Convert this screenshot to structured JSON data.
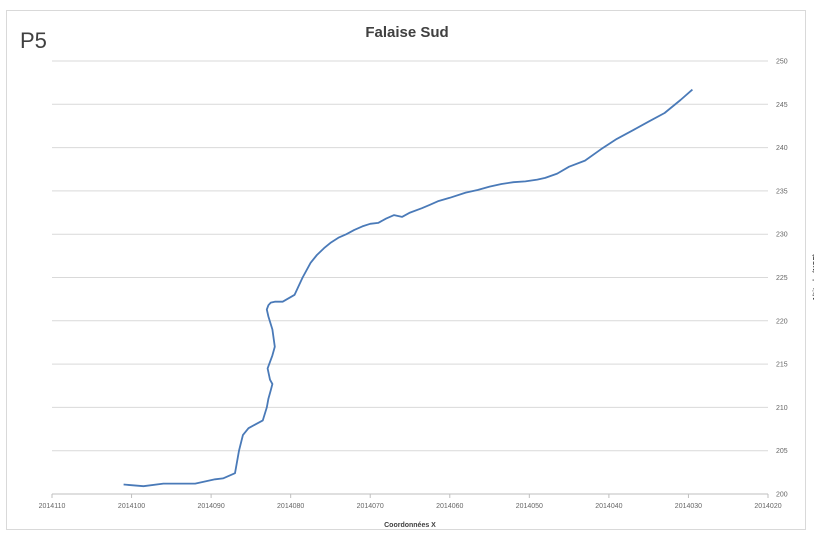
{
  "panel_label": "P5",
  "chart_data": {
    "type": "line",
    "title": "Falaise Sud",
    "xlabel": "Coordonnées X",
    "ylabel": "Altitude (NGF)",
    "x_reversed": true,
    "xlim": [
      2014020,
      2014110
    ],
    "ylim": [
      200,
      250
    ],
    "x_ticks": [
      "2014110",
      "2014100",
      "2014090",
      "2014080",
      "2014070",
      "2014060",
      "2014050",
      "2014040",
      "2014030",
      "2014020"
    ],
    "y_ticks": [
      "200",
      "205",
      "210",
      "215",
      "220",
      "225",
      "230",
      "235",
      "240",
      "245",
      "250"
    ],
    "grid": "horizontal",
    "y_axis_position": "right",
    "line_color": "#4a7ab8",
    "series": [
      {
        "x": [
          2014101.0,
          2014098.5,
          2014096.0,
          2014092.0,
          2014089.5,
          2014088.5,
          2014087.0,
          2014086.5,
          2014086.0,
          2014085.3,
          2014084.5,
          2014083.5,
          2014083.0,
          2014082.8,
          2014082.5,
          2014082.3,
          2014082.6,
          2014082.9,
          2014082.3,
          2014082.0,
          2014082.3,
          2014082.8,
          2014083.0,
          2014082.8,
          2014082.5,
          2014082.0,
          2014081.0,
          2014079.5,
          2014078.5,
          2014077.5,
          2014076.7,
          2014075.8,
          2014075.0,
          2014074.0,
          2014073.0,
          2014072.0,
          2014071.0,
          2014070.0,
          2014069.0,
          2014068.0,
          2014067.0,
          2014066.0,
          2014065.0,
          2014063.5,
          2014062.5,
          2014061.5,
          2014060.0,
          2014058.0,
          2014056.5,
          2014055.0,
          2014053.5,
          2014052.0,
          2014050.5,
          2014049.0,
          2014048.0,
          2014046.5,
          2014045.0,
          2014043.0,
          2014041.0,
          2014039.0,
          2014037.0,
          2014035.0,
          2014033.0,
          2014031.0,
          2014029.5
        ],
        "y": [
          201.1,
          200.9,
          201.2,
          201.2,
          201.7,
          201.8,
          202.4,
          205.0,
          206.8,
          207.6,
          208.0,
          208.5,
          210.0,
          211.0,
          212.0,
          212.7,
          213.2,
          214.5,
          216.0,
          217.0,
          219.0,
          220.5,
          221.3,
          221.8,
          222.1,
          222.2,
          222.2,
          223.0,
          225.0,
          226.7,
          227.6,
          228.4,
          229.0,
          229.6,
          230.0,
          230.5,
          230.9,
          231.2,
          231.3,
          231.8,
          232.2,
          232.0,
          232.5,
          233.0,
          233.4,
          233.8,
          234.2,
          234.8,
          235.1,
          235.5,
          235.8,
          236.0,
          236.1,
          236.3,
          236.5,
          237.0,
          237.8,
          238.5,
          239.8,
          241.0,
          242.0,
          243.0,
          244.0,
          245.5,
          246.7
        ]
      }
    ]
  }
}
